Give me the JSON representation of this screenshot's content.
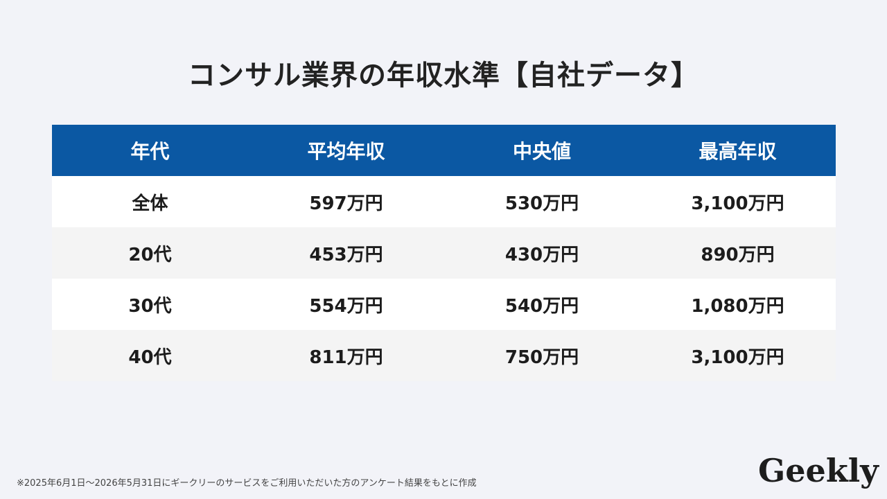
{
  "title": "コンサル業界の年収水準【自社データ】",
  "table": {
    "headers": [
      "年代",
      "平均年収",
      "中央値",
      "最高年収"
    ],
    "rows": [
      [
        "全体",
        "597万円",
        "530万円",
        "3,100万円"
      ],
      [
        "20代",
        "453万円",
        "430万円",
        "890万円"
      ],
      [
        "30代",
        "554万円",
        "540万円",
        "1,080万円"
      ],
      [
        "40代",
        "811万円",
        "750万円",
        "3,100万円"
      ]
    ]
  },
  "footnote": "※2025年6月1日〜2026年5月31日にギークリーのサービスをご利用いただいた方のアンケート結果をもとに作成",
  "logo": "Geekly",
  "colors": {
    "header_bg": "#0b58a3",
    "page_bg": "#f2f3f8"
  }
}
